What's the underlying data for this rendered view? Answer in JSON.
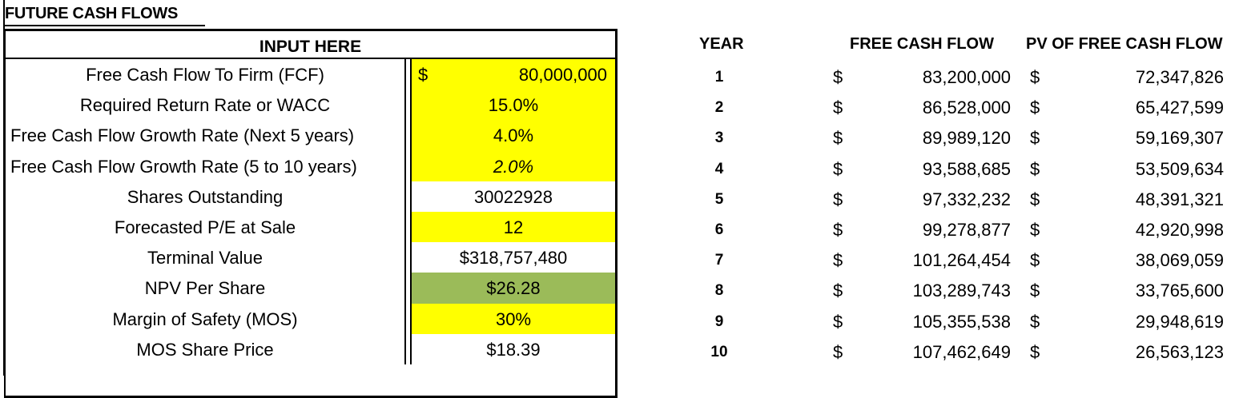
{
  "sheet_title": "FUTURE CASH FLOWS",
  "inputs": {
    "header": "INPUT HERE",
    "currency_symbol": "$",
    "rows": [
      {
        "label": "Free Cash Flow To Firm (FCF)",
        "value": "80,000,000",
        "fill": "yellow"
      },
      {
        "label": "Required Return Rate or WACC",
        "value": "15.0%",
        "fill": "yellow"
      },
      {
        "label": "Free Cash Flow Growth Rate (Next 5 years)",
        "value": "4.0%",
        "fill": "yellow"
      },
      {
        "label": "Free Cash Flow Growth Rate (5 to 10 years)",
        "value": "2.0%",
        "fill": "yellow"
      },
      {
        "label": "Shares Outstanding",
        "value": "30022928",
        "fill": "none"
      },
      {
        "label": "Forecasted P/E at Sale",
        "value": "12",
        "fill": "yellow"
      },
      {
        "label": "Terminal Value",
        "value": "$318,757,480",
        "fill": "none"
      },
      {
        "label": "NPV Per Share",
        "value": "$26.28",
        "fill": "green"
      },
      {
        "label": "Margin of Safety (MOS)",
        "value": "30%",
        "fill": "yellow"
      },
      {
        "label": "MOS Share Price",
        "value": "$18.39",
        "fill": "none"
      }
    ]
  },
  "cash_flows": {
    "headers": {
      "year": "YEAR",
      "fcf": "FREE CASH FLOW",
      "pv": "PV OF FREE CASH FLOW"
    },
    "currency_symbol": "$",
    "rows": [
      {
        "year": "1",
        "fcf": "83,200,000",
        "pv": "72,347,826"
      },
      {
        "year": "2",
        "fcf": "86,528,000",
        "pv": "65,427,599"
      },
      {
        "year": "3",
        "fcf": "89,989,120",
        "pv": "59,169,307"
      },
      {
        "year": "4",
        "fcf": "93,588,685",
        "pv": "53,509,634"
      },
      {
        "year": "5",
        "fcf": "97,332,232",
        "pv": "48,391,321"
      },
      {
        "year": "6",
        "fcf": "99,278,877",
        "pv": "42,920,998"
      },
      {
        "year": "7",
        "fcf": "101,264,454",
        "pv": "38,069,059"
      },
      {
        "year": "8",
        "fcf": "103,289,743",
        "pv": "33,765,600"
      },
      {
        "year": "9",
        "fcf": "105,355,538",
        "pv": "29,948,619"
      },
      {
        "year": "10",
        "fcf": "107,462,649",
        "pv": "26,563,123"
      }
    ]
  },
  "colors": {
    "input_fill": "#ffff00",
    "npv_fill": "#9bbb59"
  }
}
